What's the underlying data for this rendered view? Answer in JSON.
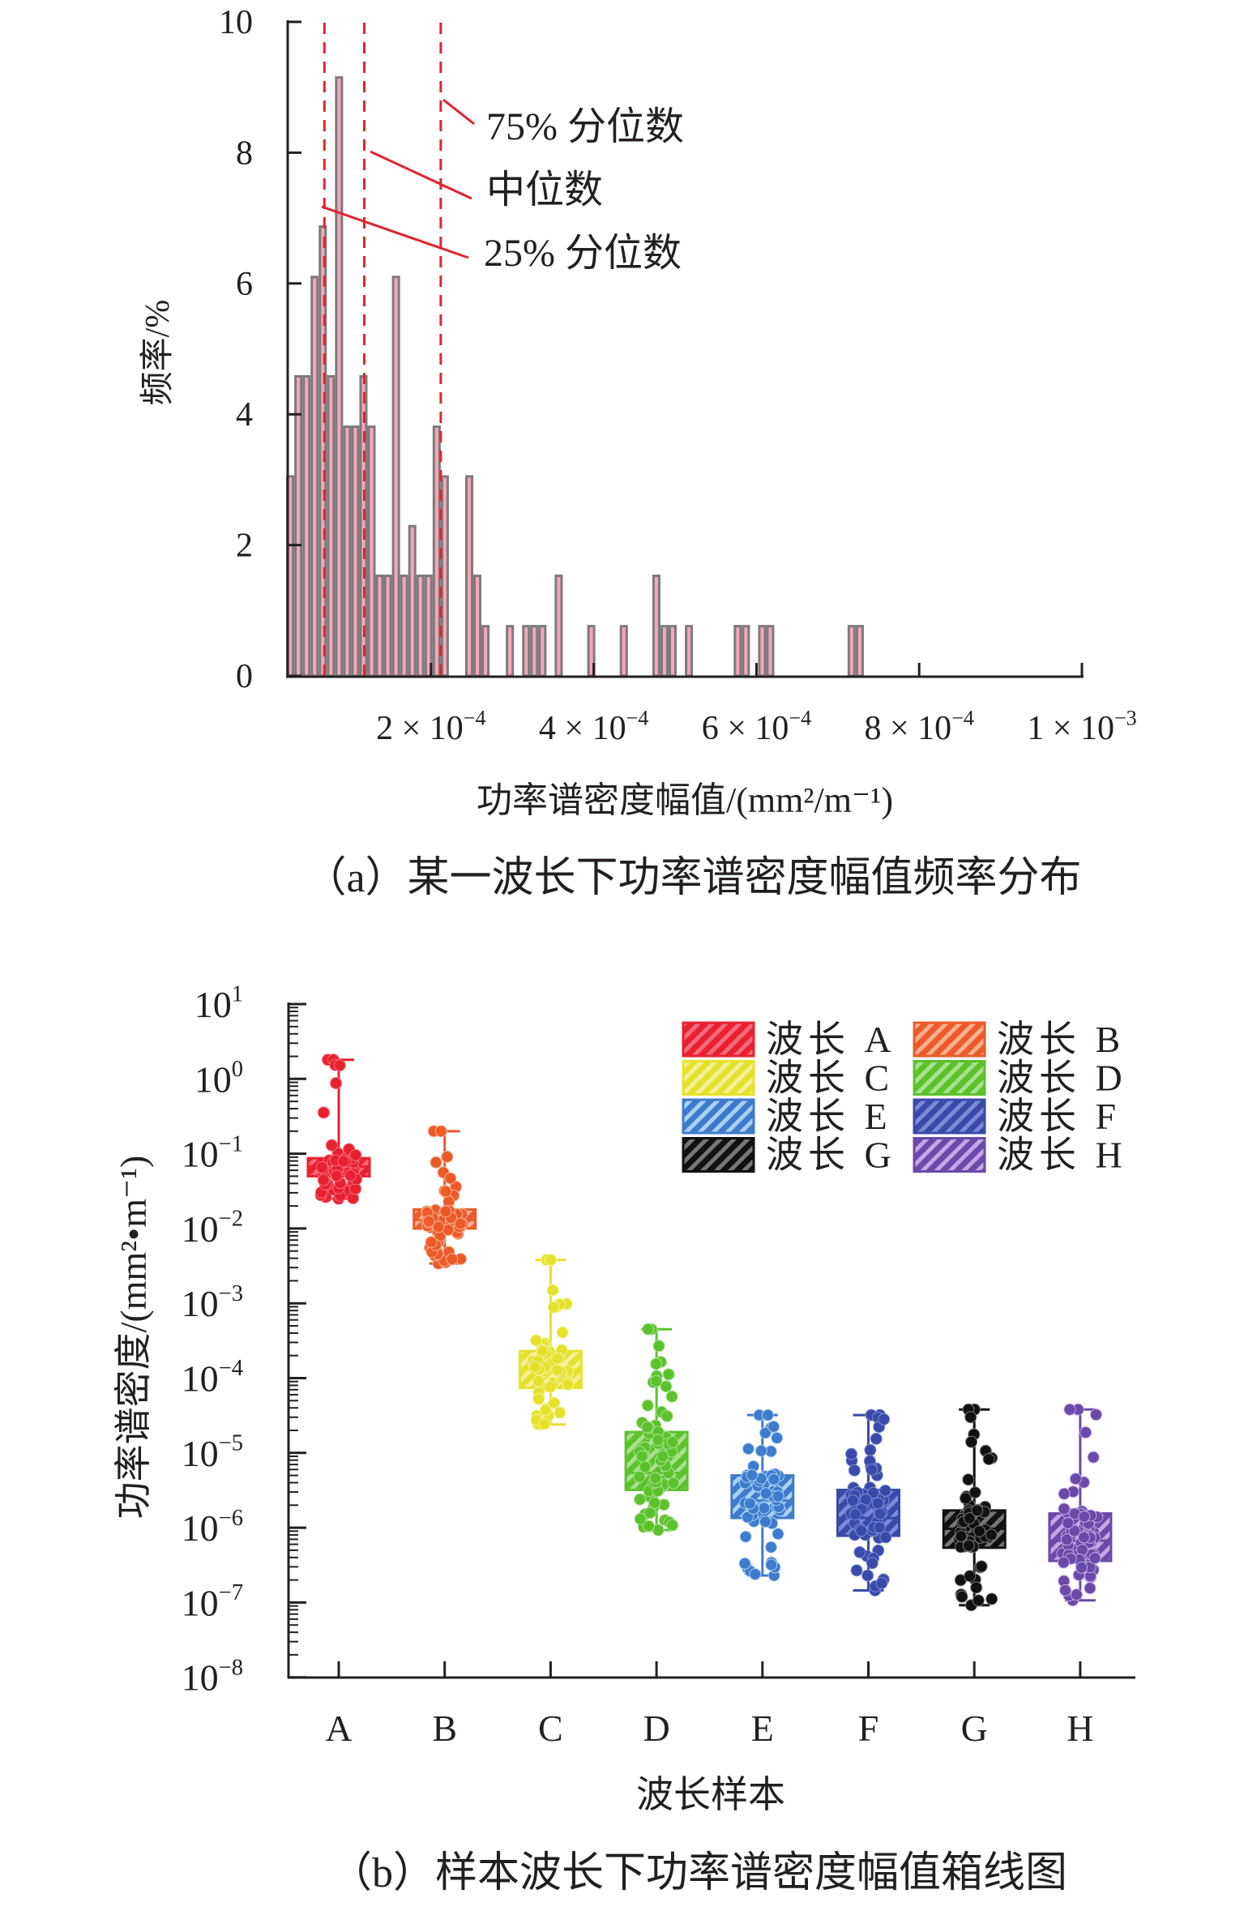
{
  "chart_data": [
    {
      "type": "bar",
      "subtype": "histogram",
      "caption": "（a）某一波长下功率谱密度幅值频率分布",
      "xlabel": "功率谱密度幅值/(mm²/m⁻¹)",
      "ylabel": "频率/%",
      "xlim": [
        2.3e-05,
        0.001
      ],
      "ylim": [
        0,
        10
      ],
      "yticks": [
        "0",
        "2",
        "4",
        "6",
        "8",
        "10"
      ],
      "xticks": [
        {
          "value": 0.0002,
          "mantissa": "2 × 10",
          "exp": "−4"
        },
        {
          "value": 0.0004,
          "mantissa": "4 × 10",
          "exp": "−4"
        },
        {
          "value": 0.0006,
          "mantissa": "6 × 10",
          "exp": "−4"
        },
        {
          "value": 0.0008,
          "mantissa": "8 × 10",
          "exp": "−4"
        },
        {
          "value": 0.001,
          "mantissa": "1 × 10",
          "exp": "−3"
        }
      ],
      "bin_start": 2.2e-05,
      "bin_width": 1e-05,
      "values": [
        3.05,
        4.58,
        4.58,
        6.1,
        6.87,
        4.58,
        9.15,
        3.81,
        3.81,
        4.58,
        3.81,
        1.53,
        1.53,
        6.1,
        1.53,
        2.29,
        1.53,
        1.53,
        3.81,
        3.05,
        0,
        0,
        3.05,
        1.53,
        0.76,
        0,
        0,
        0.76,
        0,
        0.76,
        0.76,
        0.76,
        0,
        1.53,
        0,
        0,
        0,
        0.76,
        0,
        0,
        0,
        0.76,
        0,
        0,
        0,
        1.53,
        0.76,
        0.76,
        0,
        0.76,
        0,
        0,
        0,
        0,
        0,
        0.76,
        0.76,
        0,
        0.76,
        0.76,
        0,
        0,
        0,
        0,
        0,
        0,
        0,
        0,
        0,
        0.76,
        0.76
      ],
      "quantiles": [
        {
          "name": "25% 分位数",
          "value": 6.9e-05
        },
        {
          "name": "中位数",
          "value": 0.000118
        },
        {
          "name": "75% 分位数",
          "value": 0.000212
        }
      ],
      "colors": {
        "fill": "#f4a7b5",
        "edge": "#7d7a80",
        "quantile": "#e0242f"
      }
    },
    {
      "type": "box",
      "caption": "（b）样本波长下功率谱密度幅值箱线图",
      "xlabel": "波长样本",
      "ylabel": "功率谱密度/(mm²•m⁻¹)",
      "yscale": "log",
      "ylim": [
        1e-08,
        10
      ],
      "yticks": [
        {
          "base": "10",
          "exp": "1"
        },
        {
          "base": "10",
          "exp": "0"
        },
        {
          "base": "10",
          "exp": "−1"
        },
        {
          "base": "10",
          "exp": "−2"
        },
        {
          "base": "10",
          "exp": "−3"
        },
        {
          "base": "10",
          "exp": "−4"
        },
        {
          "base": "10",
          "exp": "−5"
        },
        {
          "base": "10",
          "exp": "−6"
        },
        {
          "base": "10",
          "exp": "−7"
        },
        {
          "base": "10",
          "exp": "−8"
        }
      ],
      "categories": [
        "A",
        "B",
        "C",
        "D",
        "E",
        "F",
        "G",
        "H"
      ],
      "legend_position": "top-right",
      "series": [
        {
          "name": "波长 A",
          "color": "#e8212f",
          "light": "#f56b7c",
          "min": 0.025,
          "q1": 0.05,
          "median": 0.067,
          "q3": 0.087,
          "max": 1.8
        },
        {
          "name": "波长 B",
          "color": "#ec5a2a",
          "light": "#f7b08f",
          "min": 0.0034,
          "q1": 0.01,
          "median": 0.013,
          "q3": 0.018,
          "max": 0.2
        },
        {
          "name": "波长 C",
          "color": "#e6e22c",
          "light": "#f4f19a",
          "min": 2.4e-05,
          "q1": 7.4e-05,
          "median": 0.00013,
          "q3": 0.00023,
          "max": 0.0038
        },
        {
          "name": "波长 D",
          "color": "#5cc22c",
          "light": "#a9e08f",
          "min": 9.3e-07,
          "q1": 3.2e-06,
          "median": 5.4e-06,
          "q3": 1.9e-05,
          "max": 0.00045
        },
        {
          "name": "波长 E",
          "color": "#3f7bcc",
          "light": "#a9d0f5",
          "min": 2.3e-07,
          "q1": 1.35e-06,
          "median": 2.3e-06,
          "q3": 5e-06,
          "max": 3.2e-05
        },
        {
          "name": "波长 F",
          "color": "#3a4aa8",
          "light": "#7b8bd6",
          "min": 1.45e-07,
          "q1": 7.8e-07,
          "median": 1.35e-06,
          "q3": 3.2e-06,
          "max": 3.2e-05
        },
        {
          "name": "波长 G",
          "color": "#111111",
          "light": "#777777",
          "min": 9.2e-08,
          "q1": 5.4e-07,
          "median": 9.7e-07,
          "q3": 1.7e-06,
          "max": 3.8e-05
        },
        {
          "name": "波长 H",
          "color": "#6a4aa8",
          "light": "#c3a6e6",
          "min": 1.07e-07,
          "q1": 3.6e-07,
          "median": 6.7e-07,
          "q3": 1.55e-06,
          "max": 3.8e-05
        }
      ]
    }
  ]
}
